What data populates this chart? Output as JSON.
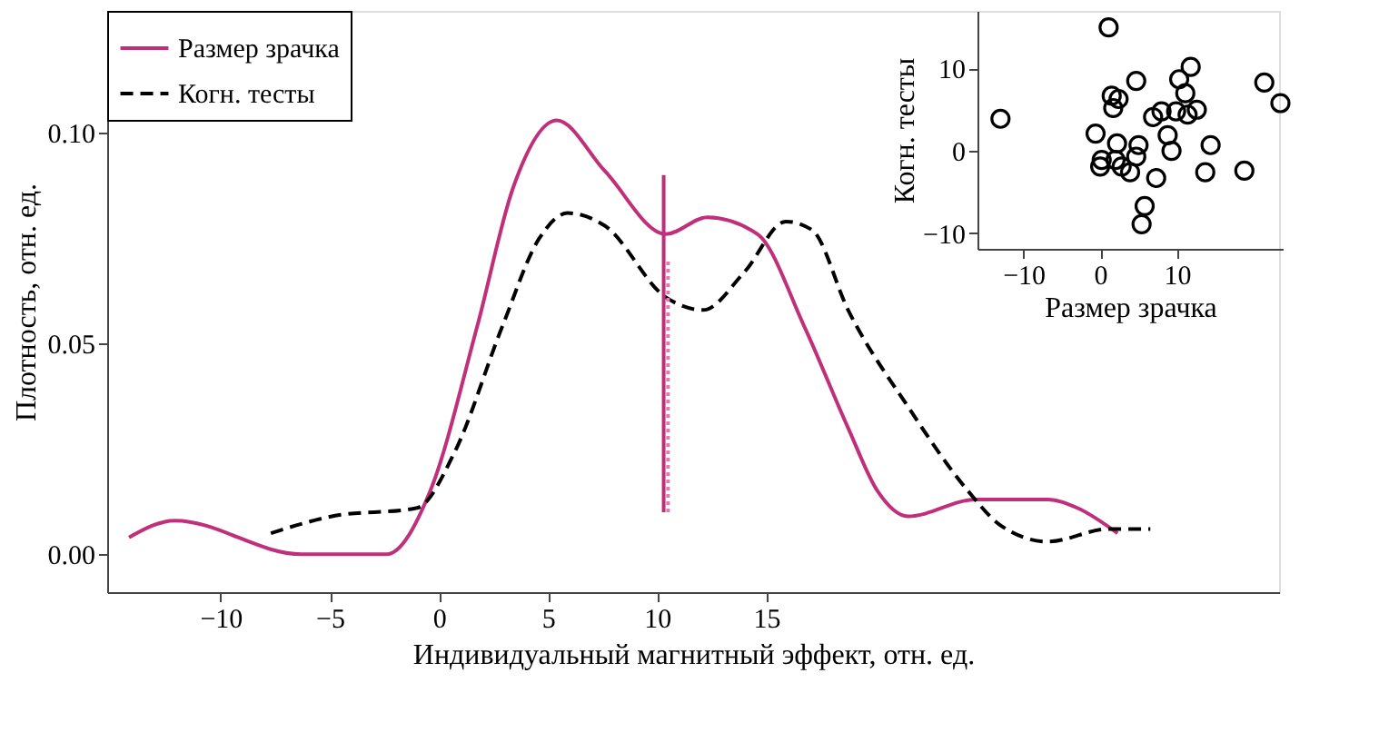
{
  "chart_data": [
    {
      "type": "line",
      "xlabel": "Индивидуальный магнитный эффект, отн. ед.",
      "ylabel": "Плотность, отн. ед.",
      "xlim": [
        -15.2,
        38.5
      ],
      "ylim": [
        -0.009,
        0.129
      ],
      "xticks": [
        -10,
        -5,
        0,
        5,
        10,
        15
      ],
      "yticks": [
        {
          "value": 0,
          "label": "0.00"
        },
        {
          "value": 0.05,
          "label": "0.05"
        },
        {
          "value": 0.1,
          "label": "0.10"
        }
      ],
      "legend": "top left",
      "grid": false,
      "series": [
        {
          "name": "Размер зрачка",
          "color": "#c0307a",
          "line_style": "solid",
          "x": [
            -14.2,
            -12.1,
            -6.3,
            -2.4,
            -0.4,
            1.75,
            3.4,
            5.4,
            7.6,
            10.4,
            12.3,
            14.6,
            16.75,
            18.75,
            20.1,
            21.5,
            24.6,
            27.9,
            29.25,
            31.1
          ],
          "values": [
            0.004,
            0.008,
            0.0,
            0.0,
            0.015,
            0.054,
            0.087,
            0.103,
            0.091,
            0.076,
            0.08,
            0.076,
            0.054,
            0.03,
            0.015,
            0.009,
            0.013,
            0.013,
            0.011,
            0.005
          ]
        },
        {
          "name": "Когн. тесты",
          "color": "#000000",
          "line_style": "dashed",
          "x": [
            -7.7,
            -4.9,
            -1.0,
            0.7,
            2.9,
            4.6,
            5.9,
            7.6,
            10.4,
            12.1,
            14.0,
            15.9,
            17.1,
            18.75,
            21.5,
            24.25,
            25.7,
            27.9,
            30.7,
            32.6
          ],
          "values": [
            0.005,
            0.009,
            0.011,
            0.024,
            0.054,
            0.075,
            0.081,
            0.078,
            0.061,
            0.058,
            0.067,
            0.079,
            0.077,
            0.058,
            0.035,
            0.015,
            0.007,
            0.003,
            0.006,
            0.006
          ]
        },
        {
          "color": "#c0307a",
          "line_style": "solid",
          "x": [
            10.3,
            10.3
          ],
          "values": [
            0.01,
            0.09
          ]
        },
        {
          "color": "#e07ab0",
          "line_style": "dotted",
          "x": [
            10.5,
            10.5
          ],
          "values": [
            0.01,
            0.07
          ]
        }
      ]
    },
    {
      "type": "scatter",
      "marker": "circle",
      "xlabel": "Размер зрачка",
      "ylabel": "Когн. тесты",
      "xlim": [
        -16,
        23.8
      ],
      "ylim": [
        -11.9,
        17
      ],
      "xticks": [
        -10,
        0,
        10
      ],
      "yticks": [
        -10,
        0,
        10
      ],
      "grid": false,
      "series": [
        {
          "color": "#000000",
          "x": [
            -13.0,
            1.1,
            -0.6,
            0.2,
            0.0,
            1.5,
            1.7,
            2.4,
            2.2,
            2.0,
            2.8,
            3.9,
            4.7,
            4.7,
            5.0,
            6.9,
            7.3,
            5.8,
            5.4,
            8.0,
            8.8,
            9.3,
            9.9,
            10.3,
            11.1,
            11.8,
            11.4,
            12.6,
            14.4,
            13.7,
            18.8,
            21.4,
            23.5
          ],
          "values": [
            3.9,
            15.0,
            2.1,
            -1.1,
            -1.9,
            6.7,
            5.2,
            6.3,
            0.9,
            -1.1,
            -1.9,
            -2.6,
            8.5,
            -0.7,
            0.7,
            4.1,
            -3.3,
            -6.7,
            -8.9,
            4.8,
            1.9,
            0.0,
            4.8,
            8.7,
            7.0,
            10.2,
            4.4,
            5.0,
            0.7,
            -2.6,
            -2.4,
            8.3,
            5.8
          ]
        }
      ]
    }
  ]
}
